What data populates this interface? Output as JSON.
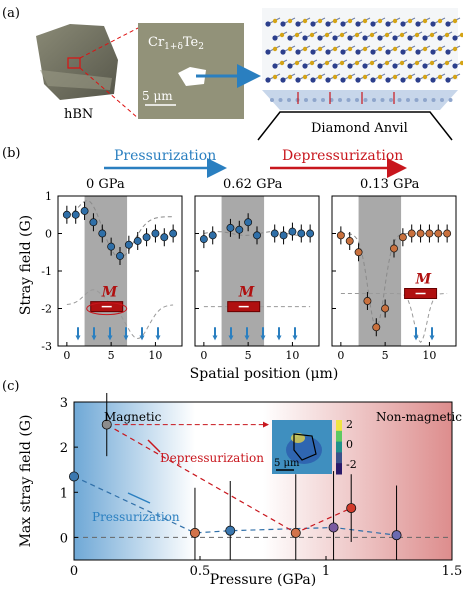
{
  "panel_a": {
    "label": "(a)",
    "hbn_label": "hBN",
    "sample_label": "Cr1+δTe2",
    "sample_label_parts": {
      "base": "Cr",
      "sub": "1+δ",
      "mid": "Te",
      "sub2": "2"
    },
    "scale_bar": "5 μm",
    "anvil_label": "Diamond Anvil"
  },
  "panel_b": {
    "label": "(b)",
    "pressurization": "Pressurization",
    "depressurization": "Depressurization",
    "pressures": [
      "0 GPa",
      "0.62 GPa",
      "0.13 GPa"
    ],
    "magnet_label": "M",
    "ylabel": "Stray field (G)",
    "xlabel": "Spatial position (μm)",
    "colors": {
      "pressurization": "#2a7fc0",
      "depressurization": "#c8161d"
    }
  },
  "panel_c": {
    "label": "(c)",
    "magnetic": "Magnetic",
    "non_magnetic": "Non-magnetic",
    "depressurization": "Depressurization",
    "pressurization": "Pressurization",
    "inset_scale": "5 μm",
    "colorbar_ticks": [
      "2",
      "0",
      "-2"
    ]
  },
  "chart_data": [
    {
      "type": "scatter",
      "xlabel": "Spatial position (μm)",
      "ylabel": "Stray field (G)",
      "ylim": [
        -3,
        1
      ],
      "xlim": [
        -1,
        13
      ],
      "subplots": [
        {
          "title": "0 GPa",
          "color": "#2f6fa8",
          "x": [
            0,
            1,
            2,
            3,
            4,
            5,
            6,
            7,
            8,
            9,
            10,
            11,
            12
          ],
          "y": [
            0.5,
            0.5,
            0.6,
            0.3,
            0.0,
            -0.35,
            -0.6,
            -0.3,
            -0.2,
            -0.1,
            0.0,
            -0.1,
            0.0
          ]
        },
        {
          "title": "0.62 GPa",
          "color": "#2f6fa8",
          "x": [
            0,
            1,
            3,
            4,
            5,
            6,
            8,
            9,
            10,
            11,
            12
          ],
          "y": [
            -0.15,
            -0.05,
            0.15,
            0.1,
            0.3,
            -0.05,
            0.0,
            -0.05,
            0.05,
            0.0,
            0.0
          ]
        },
        {
          "title": "0.13 GPa",
          "color": "#c9713e",
          "x": [
            0,
            1,
            2,
            3,
            4,
            5,
            6,
            7,
            8,
            9,
            10,
            11,
            12
          ],
          "y": [
            -0.05,
            -0.2,
            -0.5,
            -1.8,
            -2.5,
            -2.0,
            -0.4,
            -0.1,
            0.0,
            0.0,
            0.0,
            0.0,
            0.0
          ]
        }
      ]
    },
    {
      "type": "scatter",
      "xlabel": "Pressure (GPa)",
      "ylabel": "Max stray field (G)",
      "xlim": [
        0,
        1.5
      ],
      "ylim": [
        -0.5,
        3
      ],
      "series": [
        {
          "name": "Pressurization",
          "color": "#2f6fa8",
          "x": [
            0,
            0.48,
            0.62,
            1.03,
            1.28
          ],
          "y": [
            1.35,
            0.1,
            0.15,
            0.22,
            0.05
          ]
        },
        {
          "name": "Depressurization",
          "color": "#c8161d",
          "x": [
            0.13,
            0.88,
            1.1
          ],
          "y": [
            2.5,
            0.1,
            0.65
          ]
        }
      ]
    }
  ]
}
